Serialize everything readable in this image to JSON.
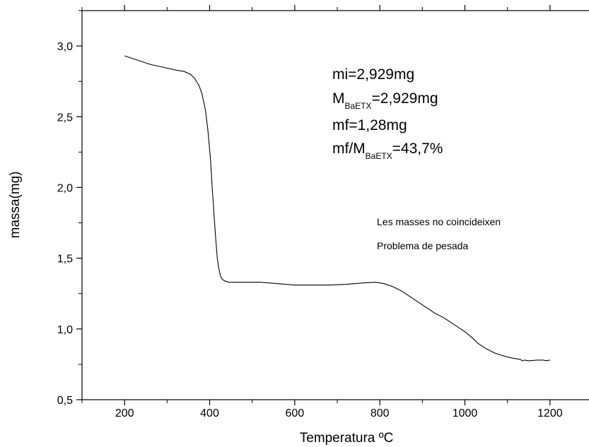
{
  "chart_data": {
    "type": "line",
    "title": "",
    "xlabel": "Temperatura ºC",
    "ylabel": "massa(mg)",
    "xlim": [
      100,
      1300
    ],
    "ylim": [
      0.5,
      3.25
    ],
    "x_ticks": [
      200,
      400,
      600,
      800,
      1000,
      1200
    ],
    "x_tick_labels": [
      "200",
      "400",
      "600",
      "800",
      "1000",
      "1200"
    ],
    "y_ticks": [
      0.5,
      1.0,
      1.5,
      2.0,
      2.5,
      3.0
    ],
    "y_tick_labels": [
      "0,5",
      "1,0",
      "1,5",
      "2,0",
      "2,5",
      "3,0"
    ],
    "grid": false,
    "series": [
      {
        "x": [
          200,
          230,
          260,
          290,
          320,
          340,
          355,
          365,
          375,
          382,
          390,
          396,
          402,
          406,
          410,
          414,
          418,
          422,
          426,
          430,
          435,
          440,
          445,
          450,
          480,
          520,
          560,
          600,
          640,
          680,
          720,
          760,
          790,
          810,
          830,
          850,
          870,
          890,
          910,
          930,
          950,
          960,
          980,
          1000,
          1020,
          1030,
          1050,
          1070,
          1090,
          1110,
          1130,
          1135,
          1140,
          1150,
          1170,
          1185,
          1190,
          1200
        ],
        "y": [
          2.93,
          2.9,
          2.87,
          2.85,
          2.83,
          2.82,
          2.8,
          2.77,
          2.72,
          2.66,
          2.55,
          2.4,
          2.2,
          2.0,
          1.82,
          1.65,
          1.5,
          1.42,
          1.37,
          1.35,
          1.34,
          1.335,
          1.33,
          1.33,
          1.33,
          1.33,
          1.32,
          1.31,
          1.31,
          1.31,
          1.315,
          1.325,
          1.33,
          1.32,
          1.3,
          1.27,
          1.23,
          1.19,
          1.15,
          1.11,
          1.08,
          1.06,
          1.02,
          0.98,
          0.93,
          0.9,
          0.86,
          0.83,
          0.81,
          0.795,
          0.785,
          0.775,
          0.78,
          0.775,
          0.78,
          0.78,
          0.775,
          0.78
        ]
      }
    ],
    "annotations": {
      "mi": "mi=2,929mg",
      "mbaetx_main": "M",
      "mbaetx_sub": "BaETX",
      "mbaetx_rest": "=2,929mg",
      "mf": "mf=1,28mg",
      "ratio_main": "mf/M",
      "ratio_sub": "BaETX",
      "ratio_rest": "=43,7%",
      "note1": "Les masses no coincideixen",
      "note2": "Problema de pesada"
    }
  }
}
